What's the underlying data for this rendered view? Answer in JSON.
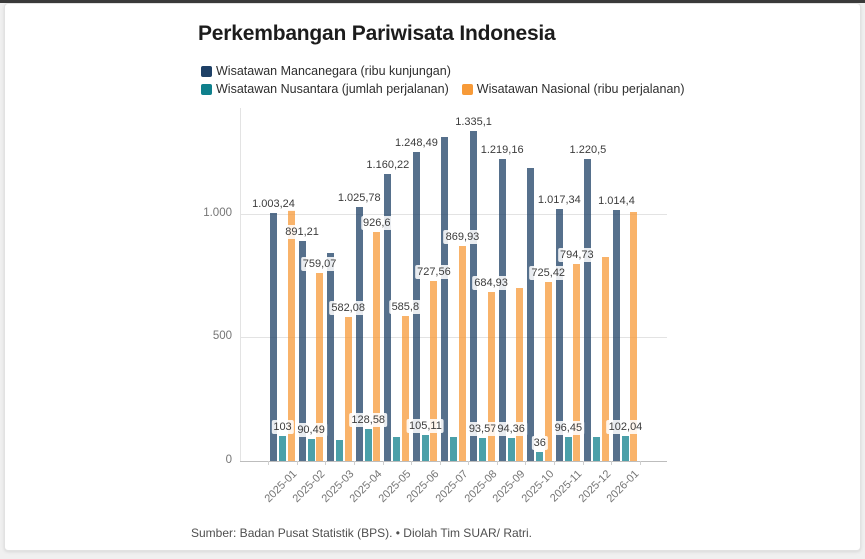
{
  "title": "Perkembangan Pariwisata Indonesia",
  "source": "Sumber: Badan Pusat Statistik (BPS). • Diolah Tim SUAR/ Ratri.",
  "colors": {
    "mancanegara": "#1e4066",
    "nusantara": "#0f808c",
    "nasional": "#f79a38",
    "card_background": "#ffffff",
    "page_background": "#f0f0f0",
    "top_edge": "#3a3a3a"
  },
  "y_axis": {
    "ticks": [
      {
        "value": 0,
        "label": "0"
      },
      {
        "value": 500,
        "label": "500"
      },
      {
        "value": 1000,
        "label": "1.000"
      }
    ]
  },
  "chart_data": {
    "type": "bar",
    "title": "Perkembangan Pariwisata Indonesia",
    "xlabel": "",
    "ylabel": "",
    "ylim": [
      0,
      1400
    ],
    "grid": "horizontal",
    "legend_position": "top-left",
    "categories": [
      "2025-01",
      "2025-02",
      "2025-03",
      "2025-04",
      "2025-05",
      "2025-06",
      "2025-07",
      "2025-08",
      "2025-09",
      "2025-10",
      "2025-11",
      "2025-12",
      "2026-01"
    ],
    "series": [
      {
        "name": "Wisatawan Mancanegara (ribu kunjungan)",
        "color": "#1e4066",
        "values": [
          1003.24,
          891.21,
          842,
          1025.78,
          1160.22,
          1248.49,
          1310,
          1335.1,
          1219.16,
          1185,
          1017.34,
          1220.5,
          1014.4
        ],
        "labels": [
          "1.003,24",
          "891,21",
          null,
          "1.025,78",
          "1.160,22",
          "1.248,49",
          null,
          "1.335,1",
          "1.219,16",
          null,
          "1.017,34",
          "1.220,5",
          "1.014,4"
        ]
      },
      {
        "name": "Wisatawan Nusantara (jumlah perjalanan)",
        "color": "#0f808c",
        "values": [
          103,
          90.49,
          85,
          128.58,
          95,
          105.11,
          95,
          93.57,
          94.36,
          36,
          96.45,
          95,
          102.04
        ],
        "labels": [
          "103",
          "90,49",
          null,
          "128,58",
          null,
          "105,11",
          null,
          "93,57",
          "94,36",
          "36",
          "96,45",
          null,
          "102,04"
        ]
      },
      {
        "name": "Wisatawan Nasional (ribu perjalanan)",
        "color": "#f79a38",
        "values": [
          1015,
          759.07,
          582.08,
          926.6,
          585.8,
          727.56,
          869.93,
          684.93,
          698,
          725.42,
          794.73,
          825,
          1008
        ],
        "labels": [
          null,
          "759,07",
          "582,08",
          "926,6",
          "585,8",
          "727,56",
          "869,93",
          "684,93",
          null,
          "725,42",
          "794,73",
          null,
          null
        ]
      }
    ]
  }
}
